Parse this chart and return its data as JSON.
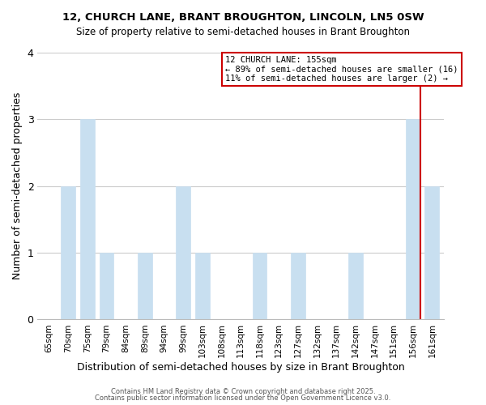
{
  "title": "12, CHURCH LANE, BRANT BROUGHTON, LINCOLN, LN5 0SW",
  "subtitle": "Size of property relative to semi-detached houses in Brant Broughton",
  "xlabel": "Distribution of semi-detached houses by size in Brant Broughton",
  "ylabel": "Number of semi-detached properties",
  "bins": [
    "65sqm",
    "70sqm",
    "75sqm",
    "79sqm",
    "84sqm",
    "89sqm",
    "94sqm",
    "99sqm",
    "103sqm",
    "108sqm",
    "113sqm",
    "118sqm",
    "123sqm",
    "127sqm",
    "132sqm",
    "137sqm",
    "142sqm",
    "147sqm",
    "151sqm",
    "156sqm",
    "161sqm"
  ],
  "counts": [
    0,
    2,
    3,
    1,
    0,
    1,
    0,
    2,
    1,
    0,
    0,
    1,
    0,
    1,
    0,
    0,
    1,
    0,
    0,
    3,
    2
  ],
  "bar_color": "#c8dff0",
  "bar_edge_color": "#c8dff0",
  "grid_color": "#cccccc",
  "subject_line_color": "#cc0000",
  "annotation_title": "12 CHURCH LANE: 155sqm",
  "annotation_line1": "← 89% of semi-detached houses are smaller (16)",
  "annotation_line2": "11% of semi-detached houses are larger (2) →",
  "ylim": [
    0,
    4
  ],
  "yticks": [
    0,
    1,
    2,
    3,
    4
  ],
  "footer1": "Contains HM Land Registry data © Crown copyright and database right 2025.",
  "footer2": "Contains public sector information licensed under the Open Government Licence v3.0."
}
